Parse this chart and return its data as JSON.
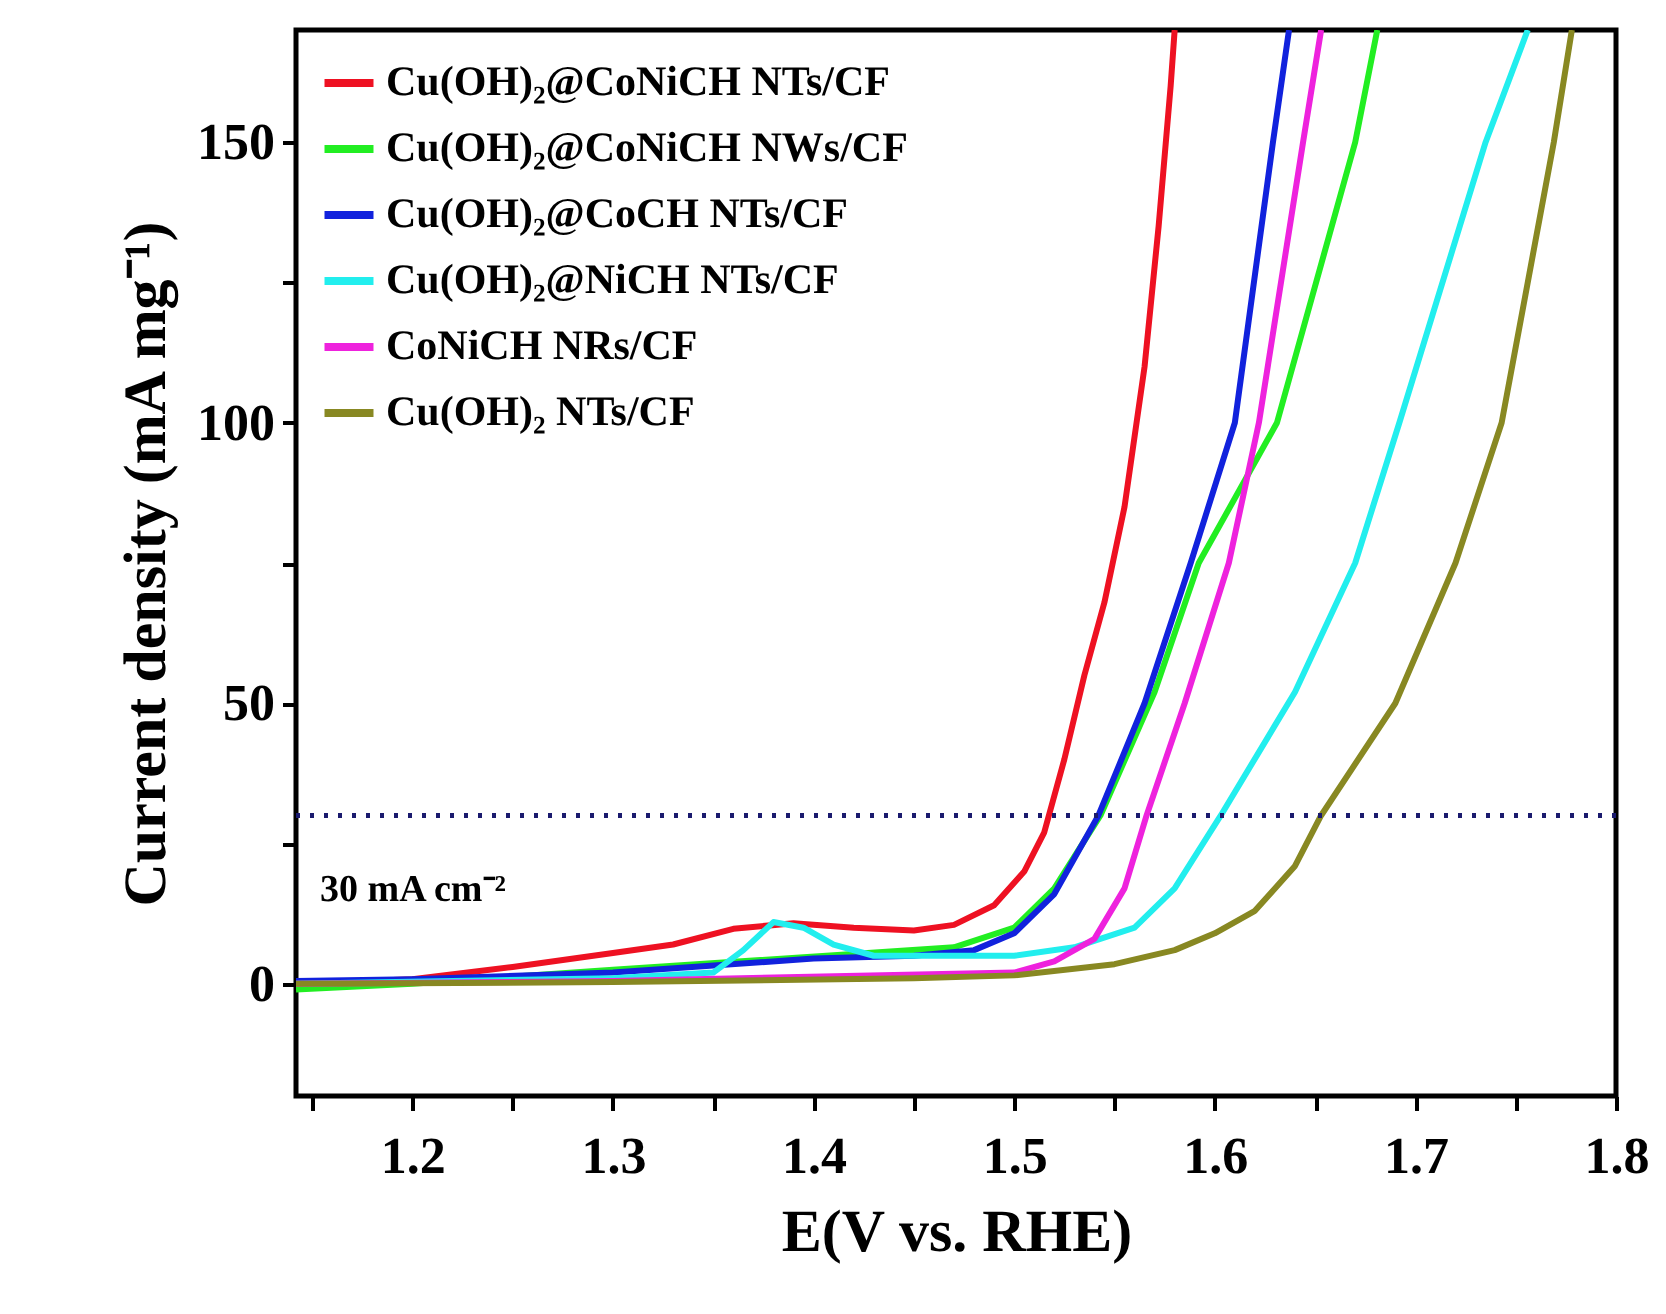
{
  "chart_data": {
    "type": "line",
    "xlabel": "E(V vs. RHE)",
    "ylabel": "Current density (mA mg⁻¹)",
    "xlim": [
      1.142,
      1.8
    ],
    "ylim": [
      -20,
      170
    ],
    "xticks": [
      {
        "value": 1.15,
        "label": null
      },
      1.2,
      {
        "value": 1.25,
        "label": null
      },
      1.3,
      {
        "value": 1.35,
        "label": null
      },
      1.4,
      {
        "value": 1.45,
        "label": null
      },
      1.5,
      {
        "value": 1.55,
        "label": null
      },
      1.6,
      {
        "value": 1.65,
        "label": null
      },
      1.7,
      {
        "value": 1.75,
        "label": null
      },
      1.8
    ],
    "yticks": [
      0,
      {
        "value": 25,
        "label": null
      },
      50,
      {
        "value": 75,
        "label": null
      },
      100,
      {
        "value": 125,
        "label": null
      },
      150
    ],
    "grid": false,
    "legend": "top left",
    "line_style": "solid",
    "marker": "none",
    "ref_lines": [
      {
        "axis": "y",
        "value": 30,
        "label": "30 mA cm⁻²",
        "color": "#1a1a6e",
        "line_style": "dotted"
      }
    ],
    "series": [
      {
        "name": "Cu(OH)₂@CoNiCH NTs/CF",
        "color": "#ee1122",
        "x": [
          1.142,
          1.2,
          1.25,
          1.3,
          1.33,
          1.36,
          1.39,
          1.42,
          1.45,
          1.47,
          1.49,
          1.505,
          1.515,
          1.525,
          1.535,
          1.545,
          1.555,
          1.565,
          1.572,
          1.578,
          1.58
        ],
        "values": [
          0,
          0.8,
          3,
          5.5,
          7,
          9.8,
          10.8,
          10,
          9.5,
          10.5,
          14,
          20,
          27,
          40,
          55,
          68,
          85,
          110,
          135,
          160,
          170
        ]
      },
      {
        "name": "Cu(OH)₂@CoNiCH NWs/CF",
        "color": "#22ee22",
        "x": [
          1.142,
          1.2,
          1.3,
          1.47,
          1.5,
          1.52,
          1.543,
          1.57,
          1.592,
          1.631,
          1.67,
          1.681
        ],
        "values": [
          -1,
          0,
          2.5,
          6.5,
          10,
          17,
          30,
          52,
          75,
          100,
          150,
          170
        ]
      },
      {
        "name": "Cu(OH)₂@CoCH NTs/CF",
        "color": "#1122dd",
        "x": [
          1.142,
          1.2,
          1.3,
          1.4,
          1.45,
          1.48,
          1.5,
          1.52,
          1.542,
          1.565,
          1.588,
          1.61,
          1.629,
          1.637
        ],
        "values": [
          0.5,
          0.8,
          2,
          4.5,
          5,
          6,
          9,
          16,
          30,
          50,
          75,
          100,
          150,
          170
        ]
      },
      {
        "name": "Cu(OH)₂@NiCH NTs/CF",
        "color": "#22eeee",
        "x": [
          1.142,
          1.3,
          1.35,
          1.365,
          1.38,
          1.395,
          1.41,
          1.43,
          1.5,
          1.53,
          1.56,
          1.58,
          1.603,
          1.64,
          1.67,
          1.692,
          1.735,
          1.756
        ],
        "values": [
          0,
          1,
          2,
          6,
          11,
          10,
          7,
          5,
          5,
          6.5,
          10,
          17,
          30,
          52,
          75,
          100,
          150,
          170
        ]
      },
      {
        "name": "CoNiCH NRs/CF",
        "color": "#ee22dd",
        "x": [
          1.142,
          1.3,
          1.5,
          1.52,
          1.54,
          1.555,
          1.566,
          1.585,
          1.607,
          1.622,
          1.644,
          1.653
        ],
        "values": [
          0,
          0.5,
          2,
          4,
          8,
          17,
          30,
          50,
          75,
          100,
          150,
          170
        ]
      },
      {
        "name": "Cu(OH)₂ NTs/CF",
        "color": "#888822",
        "x": [
          1.142,
          1.3,
          1.45,
          1.5,
          1.55,
          1.58,
          1.6,
          1.62,
          1.64,
          1.653,
          1.69,
          1.72,
          1.743,
          1.769,
          1.778
        ],
        "values": [
          0,
          0.3,
          1,
          1.5,
          3.5,
          6,
          9,
          13,
          21,
          30,
          50,
          75,
          100,
          150,
          170
        ]
      }
    ]
  }
}
